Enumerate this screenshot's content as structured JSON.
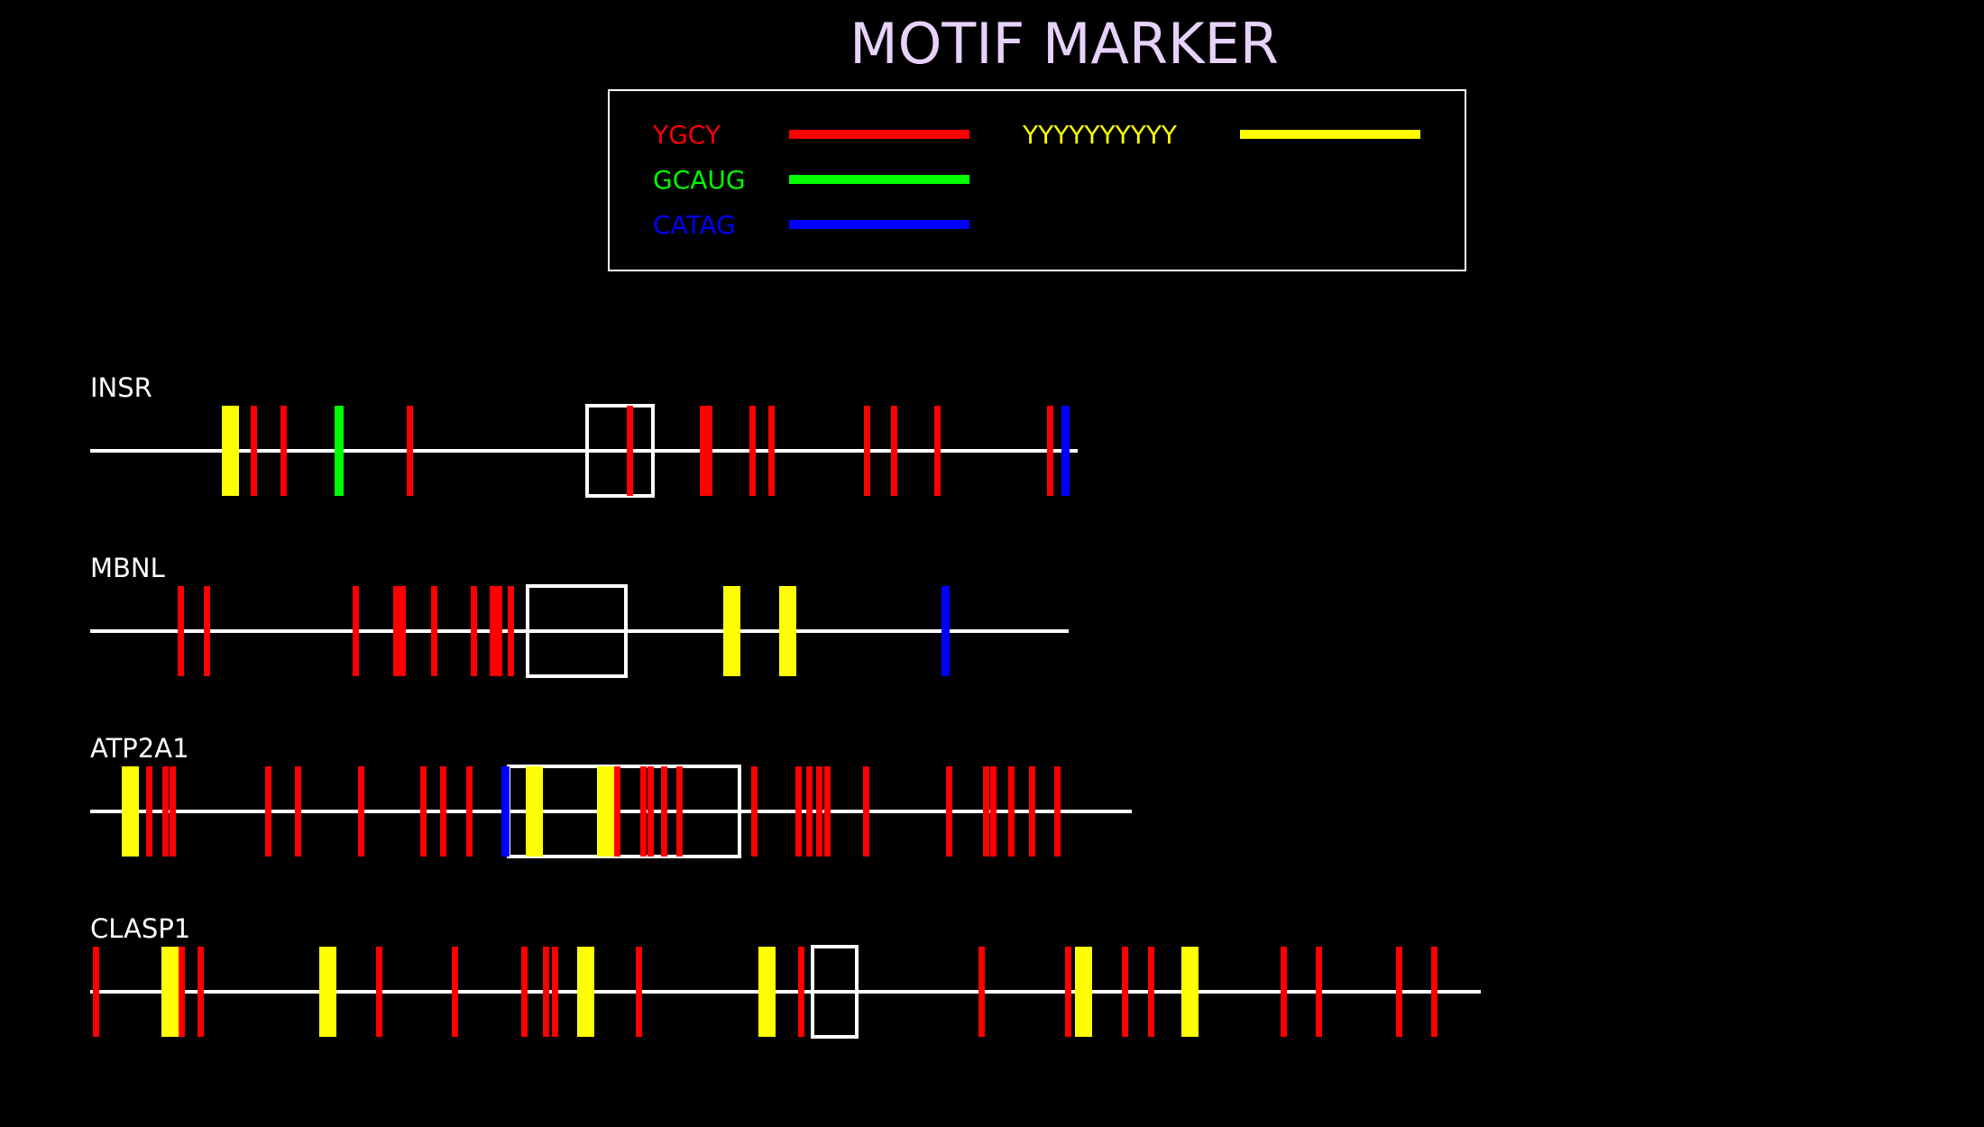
{
  "title": "MOTIF MARKER",
  "legend": [
    {
      "label": "YGCY",
      "color": "#ff0000"
    },
    {
      "label": "GCAUG",
      "color": "#00ff00"
    },
    {
      "label": "CATAG",
      "color": "#0000ff"
    },
    {
      "label": "YYYYYYYYYY",
      "color": "#ffff00"
    }
  ],
  "colors": {
    "background": "#000000",
    "gene_line": "#ffffff",
    "exon_outline": "#ffffff",
    "title": "#e6d2fa",
    "YGCY": "#ff0000",
    "GCAUG": "#00ff00",
    "CATAG": "#0000ff",
    "YYYYYYYYYY": "#ffff00"
  },
  "genes": [
    {
      "name": "INSR",
      "length": 1095,
      "exon": [
        551,
        624
      ],
      "motifs": [
        {
          "motif": "YYYYYYYYYY",
          "start": 146,
          "end": 165
        },
        {
          "motif": "YGCY",
          "start": 178,
          "end": 185
        },
        {
          "motif": "YGCY",
          "start": 211,
          "end": 218
        },
        {
          "motif": "GCAUG",
          "start": 271,
          "end": 281
        },
        {
          "motif": "YGCY",
          "start": 351,
          "end": 358
        },
        {
          "motif": "YGCY",
          "start": 595,
          "end": 602
        },
        {
          "motif": "YGCY",
          "start": 676,
          "end": 683
        },
        {
          "motif": "YGCY",
          "start": 683,
          "end": 690
        },
        {
          "motif": "YGCY",
          "start": 731,
          "end": 738
        },
        {
          "motif": "YGCY",
          "start": 752,
          "end": 759
        },
        {
          "motif": "YGCY",
          "start": 858,
          "end": 865
        },
        {
          "motif": "YGCY",
          "start": 888,
          "end": 895
        },
        {
          "motif": "YGCY",
          "start": 936,
          "end": 943
        },
        {
          "motif": "YGCY",
          "start": 1061,
          "end": 1068
        },
        {
          "motif": "CATAG",
          "start": 1077,
          "end": 1086
        }
      ]
    },
    {
      "name": "MBNL",
      "length": 1085,
      "exon": [
        485,
        594
      ],
      "motifs": [
        {
          "motif": "YGCY",
          "start": 97,
          "end": 104
        },
        {
          "motif": "YGCY",
          "start": 126,
          "end": 133
        },
        {
          "motif": "YGCY",
          "start": 291,
          "end": 298
        },
        {
          "motif": "YGCY",
          "start": 336,
          "end": 343
        },
        {
          "motif": "YGCY",
          "start": 343,
          "end": 350
        },
        {
          "motif": "YGCY",
          "start": 378,
          "end": 385
        },
        {
          "motif": "YGCY",
          "start": 422,
          "end": 429
        },
        {
          "motif": "YGCY",
          "start": 443,
          "end": 450
        },
        {
          "motif": "YGCY",
          "start": 450,
          "end": 457
        },
        {
          "motif": "YGCY",
          "start": 463,
          "end": 470
        },
        {
          "motif": "YYYYYYYYYY",
          "start": 702,
          "end": 721
        },
        {
          "motif": "YYYYYYYYYY",
          "start": 764,
          "end": 783
        },
        {
          "motif": "CATAG",
          "start": 944,
          "end": 953
        }
      ]
    },
    {
      "name": "ATP2A1",
      "length": 1155,
      "exon": [
        464,
        720
      ],
      "motifs": [
        {
          "motif": "YYYYYYYYYY",
          "start": 35,
          "end": 54
        },
        {
          "motif": "YGCY",
          "start": 62,
          "end": 69
        },
        {
          "motif": "YGCY",
          "start": 80,
          "end": 87
        },
        {
          "motif": "YGCY",
          "start": 88,
          "end": 95
        },
        {
          "motif": "YGCY",
          "start": 194,
          "end": 201
        },
        {
          "motif": "YGCY",
          "start": 227,
          "end": 234
        },
        {
          "motif": "YGCY",
          "start": 297,
          "end": 304
        },
        {
          "motif": "YGCY",
          "start": 366,
          "end": 373
        },
        {
          "motif": "YGCY",
          "start": 388,
          "end": 395
        },
        {
          "motif": "YGCY",
          "start": 417,
          "end": 424
        },
        {
          "motif": "CATAG",
          "start": 456,
          "end": 465
        },
        {
          "motif": "YYYYYYYYYY",
          "start": 483,
          "end": 502
        },
        {
          "motif": "YYYYYYYYYY",
          "start": 562,
          "end": 581
        },
        {
          "motif": "YGCY",
          "start": 581,
          "end": 588
        },
        {
          "motif": "YGCY",
          "start": 610,
          "end": 617
        },
        {
          "motif": "YGCY",
          "start": 618,
          "end": 625
        },
        {
          "motif": "YGCY",
          "start": 633,
          "end": 640
        },
        {
          "motif": "YGCY",
          "start": 650,
          "end": 657
        },
        {
          "motif": "YGCY",
          "start": 733,
          "end": 740
        },
        {
          "motif": "YGCY",
          "start": 782,
          "end": 789
        },
        {
          "motif": "YGCY",
          "start": 794,
          "end": 801
        },
        {
          "motif": "YGCY",
          "start": 805,
          "end": 812
        },
        {
          "motif": "YGCY",
          "start": 814,
          "end": 821
        },
        {
          "motif": "YGCY",
          "start": 857,
          "end": 864
        },
        {
          "motif": "YGCY",
          "start": 949,
          "end": 956
        },
        {
          "motif": "YGCY",
          "start": 990,
          "end": 997
        },
        {
          "motif": "YGCY",
          "start": 998,
          "end": 1005
        },
        {
          "motif": "YGCY",
          "start": 1018,
          "end": 1025
        },
        {
          "motif": "YGCY",
          "start": 1041,
          "end": 1048
        },
        {
          "motif": "YGCY",
          "start": 1069,
          "end": 1076
        }
      ]
    },
    {
      "name": "CLASP1",
      "length": 1542,
      "exon": [
        801,
        850
      ],
      "motifs": [
        {
          "motif": "YGCY",
          "start": 3,
          "end": 10
        },
        {
          "motif": "YYYYYYYYYY",
          "start": 79,
          "end": 98
        },
        {
          "motif": "YGCY",
          "start": 98,
          "end": 105
        },
        {
          "motif": "YGCY",
          "start": 119,
          "end": 126
        },
        {
          "motif": "YYYYYYYYYY",
          "start": 254,
          "end": 273
        },
        {
          "motif": "YGCY",
          "start": 317,
          "end": 324
        },
        {
          "motif": "YGCY",
          "start": 401,
          "end": 408
        },
        {
          "motif": "YGCY",
          "start": 478,
          "end": 485
        },
        {
          "motif": "YGCY",
          "start": 502,
          "end": 509
        },
        {
          "motif": "YGCY",
          "start": 512,
          "end": 519
        },
        {
          "motif": "YYYYYYYYYY",
          "start": 540,
          "end": 559
        },
        {
          "motif": "YGCY",
          "start": 605,
          "end": 612
        },
        {
          "motif": "YYYYYYYYYY",
          "start": 741,
          "end": 760
        },
        {
          "motif": "YGCY",
          "start": 785,
          "end": 792
        },
        {
          "motif": "YGCY",
          "start": 985,
          "end": 992
        },
        {
          "motif": "YGCY",
          "start": 1081,
          "end": 1088
        },
        {
          "motif": "YYYYYYYYYY",
          "start": 1092,
          "end": 1111
        },
        {
          "motif": "YGCY",
          "start": 1144,
          "end": 1151
        },
        {
          "motif": "YGCY",
          "start": 1173,
          "end": 1180
        },
        {
          "motif": "YYYYYYYYYY",
          "start": 1210,
          "end": 1229
        },
        {
          "motif": "YGCY",
          "start": 1320,
          "end": 1327
        },
        {
          "motif": "YGCY",
          "start": 1359,
          "end": 1366
        },
        {
          "motif": "YGCY",
          "start": 1448,
          "end": 1455
        },
        {
          "motif": "YGCY",
          "start": 1487,
          "end": 1494
        }
      ]
    }
  ]
}
